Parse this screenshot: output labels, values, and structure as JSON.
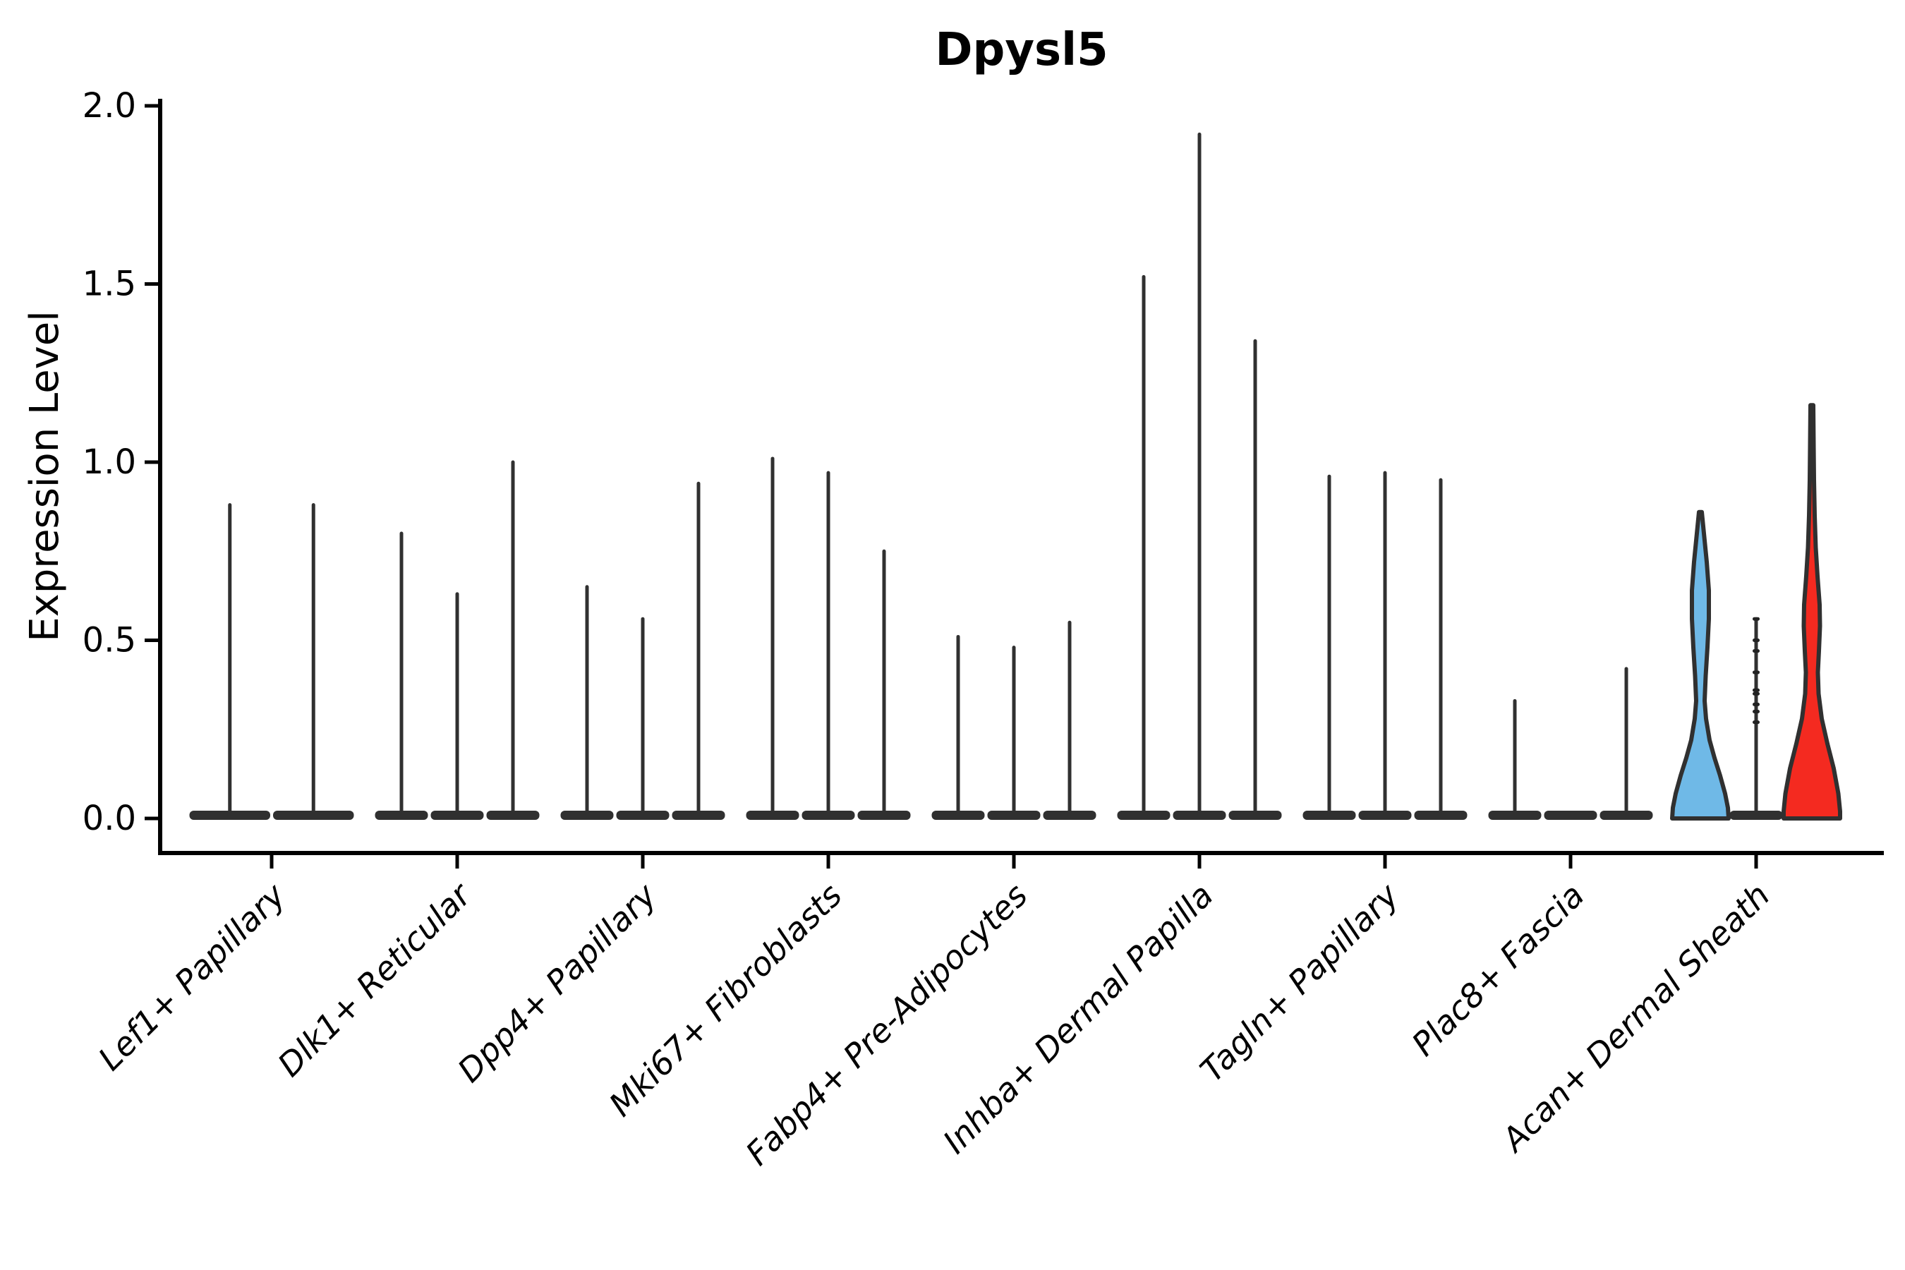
{
  "chart_data": {
    "type": "violin",
    "title": "Dpysl5",
    "ylabel": "Expression Level",
    "xlabel": "",
    "ylim": [
      0.0,
      2.0
    ],
    "ytick_labels": [
      "0.0",
      "0.5",
      "1.0",
      "1.5",
      "2.0"
    ],
    "grid": false,
    "legend_position": "none",
    "categories": [
      "Lef1+ Papillary",
      "Dlk1+ Reticular",
      "Dpp4+ Papillary",
      "Mki67+ Fibroblasts",
      "Fabp4+ Pre-Adipocytes",
      "Inhba+ Dermal Papilla",
      "Tagln+ Papillary",
      "Plac8+ Fascia",
      "Acan+ Dermal Sheath"
    ],
    "groups": [
      {
        "label": "Lef1+ Papillary",
        "violins": [
          {
            "max": 0.88
          },
          {
            "max": 0.88
          }
        ]
      },
      {
        "label": "Dlk1+ Reticular",
        "violins": [
          {
            "max": 0.8
          },
          {
            "max": 0.63
          },
          {
            "max": 1.0
          }
        ]
      },
      {
        "label": "Dpp4+ Papillary",
        "violins": [
          {
            "max": 0.65
          },
          {
            "max": 0.56
          },
          {
            "max": 0.94
          }
        ]
      },
      {
        "label": "Mki67+ Fibroblasts",
        "violins": [
          {
            "max": 1.01
          },
          {
            "max": 0.97
          },
          {
            "max": 0.75
          }
        ]
      },
      {
        "label": "Fabp4+ Pre-Adipocytes",
        "violins": [
          {
            "max": 0.51
          },
          {
            "max": 0.48
          },
          {
            "max": 0.55
          }
        ]
      },
      {
        "label": "Inhba+ Dermal Papilla",
        "violins": [
          {
            "max": 1.52
          },
          {
            "max": 1.92
          },
          {
            "max": 1.34
          }
        ]
      },
      {
        "label": "Tagln+ Papillary",
        "violins": [
          {
            "max": 0.96
          },
          {
            "max": 0.97
          },
          {
            "max": 0.95
          }
        ]
      },
      {
        "label": "Plac8+ Fascia",
        "violins": [
          {
            "max": 0.33
          },
          {
            "max": 0.0
          },
          {
            "max": 0.42
          }
        ]
      },
      {
        "label": "Acan+ Dermal Sheath",
        "violins": [
          {
            "max": 0.86,
            "fill": "#6FB9E7",
            "profile": [
              [
                0.86,
                2
              ],
              [
                0.8,
                5
              ],
              [
                0.72,
                9
              ],
              [
                0.64,
                12
              ],
              [
                0.56,
                12
              ],
              [
                0.48,
                10
              ],
              [
                0.4,
                7.5
              ],
              [
                0.33,
                6
              ],
              [
                0.28,
                8
              ],
              [
                0.22,
                13
              ],
              [
                0.17,
                20
              ],
              [
                0.12,
                28
              ],
              [
                0.07,
                35
              ],
              [
                0.03,
                39
              ],
              [
                0.0,
                40
              ]
            ]
          },
          {
            "max": 0.56,
            "dots": [
              0.56,
              0.5,
              0.47,
              0.41,
              0.36,
              0.35,
              0.32,
              0.3,
              0.27
            ]
          },
          {
            "max": 1.16,
            "fill": "#F42A20",
            "profile": [
              [
                1.16,
                2
              ],
              [
                1.05,
                2.5
              ],
              [
                0.95,
                3
              ],
              [
                0.85,
                4
              ],
              [
                0.76,
                5.5
              ],
              [
                0.68,
                8
              ],
              [
                0.6,
                11
              ],
              [
                0.54,
                11.5
              ],
              [
                0.47,
                10
              ],
              [
                0.41,
                8.5
              ],
              [
                0.35,
                9.5
              ],
              [
                0.28,
                14
              ],
              [
                0.21,
                22
              ],
              [
                0.14,
                31
              ],
              [
                0.07,
                37.5
              ],
              [
                0.02,
                40
              ],
              [
                0.0,
                40
              ]
            ]
          }
        ]
      }
    ],
    "colors": {
      "outline": "#303030",
      "violin_blue": "#6FB9E7",
      "violin_red": "#F42A20",
      "axis": "#000000"
    }
  }
}
